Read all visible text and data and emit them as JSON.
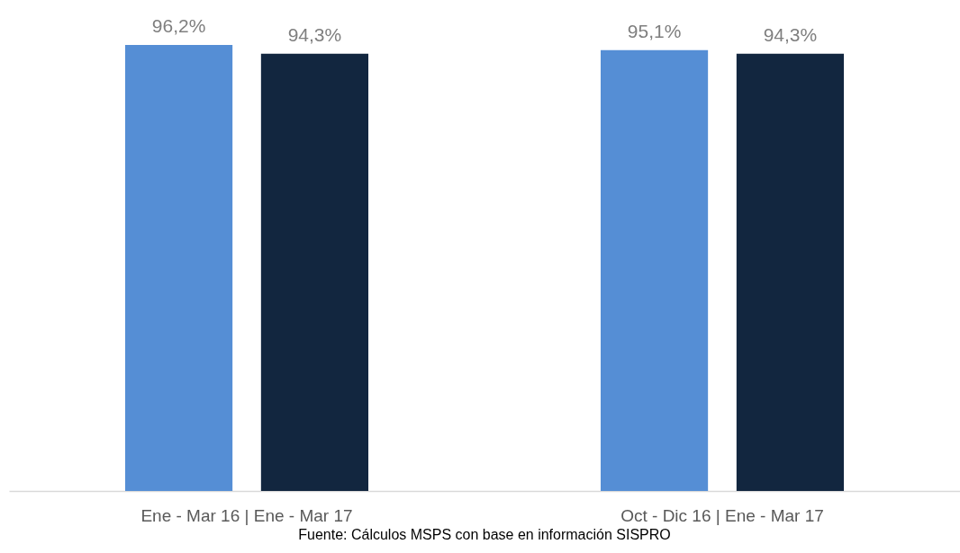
{
  "chart_data": {
    "type": "bar",
    "categories": [
      "Ene - Mar 16 | Ene - Mar 17",
      "Oct - Dic 16 | Ene - Mar 17"
    ],
    "series": [
      {
        "color": "#558ed5",
        "values": [
          96.2,
          95.1
        ],
        "value_labels": [
          "96,2%",
          "95,1%"
        ]
      },
      {
        "color": "#12263f",
        "values": [
          94.3,
          94.3
        ],
        "value_labels": [
          "94,3%",
          "94,3%"
        ]
      }
    ],
    "annotations": [
      "Fuente: Cálculos MSPS con base en información SISPRO"
    ]
  }
}
